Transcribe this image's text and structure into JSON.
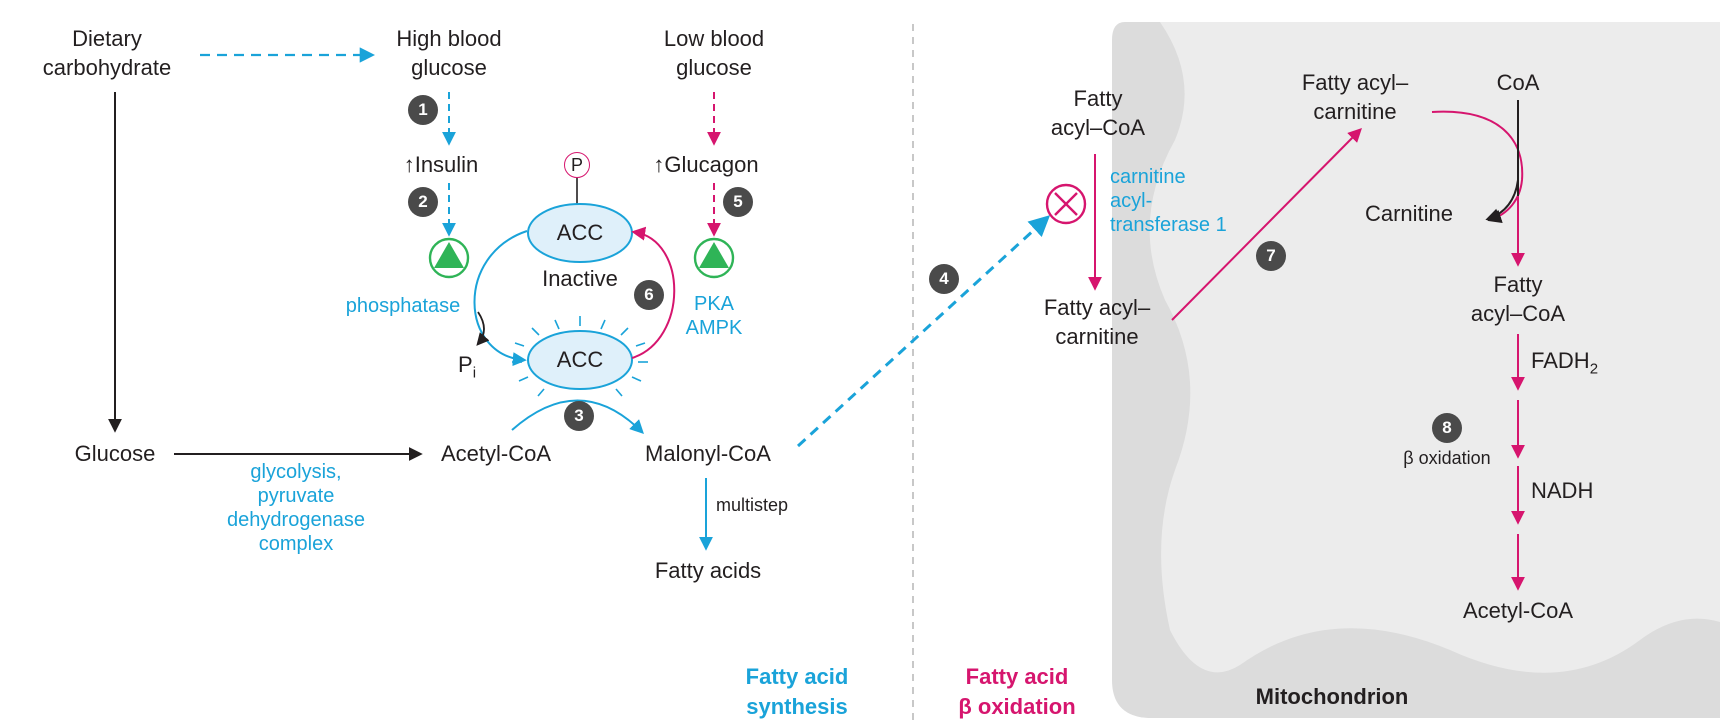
{
  "nodes": {
    "dietary_carb": "Dietary\ncarbohydrate",
    "high_glucose": "High blood\nglucose",
    "low_glucose": "Low blood\nglucose",
    "insulin": "↑Insulin",
    "glucagon": "↑Glucagon",
    "phosphate": "P",
    "acc_label": "ACC",
    "inactive": "Inactive",
    "phosphatase": "phosphatase",
    "pi": "P",
    "pi_sub": "i",
    "kinases": "PKA\nAMPK",
    "glucose": "Glucose",
    "acetyl_coa": "Acetyl-CoA",
    "malonyl_coa": "Malonyl-CoA",
    "glycolysis_note": "glycolysis,\npyruvate\ndehydrogenase\ncomplex",
    "multistep": "multistep",
    "fatty_acids": "Fatty acids",
    "fatty_acyl_coa_cyto": "Fatty\nacyl–CoA",
    "cat1": "carnitine\nacyl-\ntransferase 1",
    "fatty_acyl_carnitine_cyto": "Fatty acyl–\ncarnitine",
    "fatty_acyl_carnitine_mito": "Fatty acyl–\ncarnitine",
    "coa": "CoA",
    "carnitine": "Carnitine",
    "fatty_acyl_coa_mito": "Fatty\nacyl–CoA",
    "fadh2": "FADH",
    "fadh2_sub": "2",
    "beta_ox_step": "β oxidation",
    "nadh": "NADH",
    "acetyl_coa_mito": "Acetyl-CoA"
  },
  "badges": [
    "1",
    "2",
    "3",
    "4",
    "5",
    "6",
    "7",
    "8"
  ],
  "section_labels": {
    "synthesis": "Fatty acid\nsynthesis",
    "oxidation": "Fatty acid\nβ oxidation",
    "mitochondrion": "Mitochondrion"
  },
  "icons": {
    "activator": "green-triangle-icon",
    "inhibitor": "inhibit-circle-x-icon"
  },
  "colors": {
    "synthesis": "#1aa3d9",
    "oxidation": "#d6156e",
    "activator": "#2fb457",
    "acc_fill": "#dff0fa",
    "mitochondrion_outer": "#dcdcdc",
    "mitochondrion_inner": "#ececec"
  }
}
